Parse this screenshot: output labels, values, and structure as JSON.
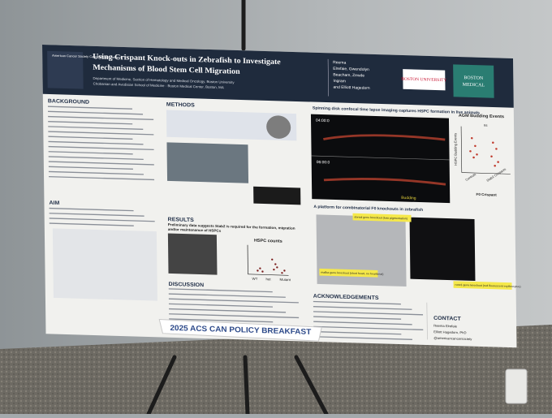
{
  "poster": {
    "header": {
      "org_logo": "American Cancer Society Cancer Action Network",
      "title": [
        "Using Crispant Knock-outs in Zebrafish to Investigate",
        "Mechanisms of Blood Stem Cell Migration"
      ],
      "affiliation": [
        "Department of Medicine, Section of Hematology and Medical Oncology, Boston University",
        "Chobanian and Avedisian School of Medicine · Boston Medical Center, Boston, MA"
      ],
      "authors": [
        "Reema",
        "Elrefaie, Gwendolyn",
        "Beacham, Zewde",
        "Ingram",
        "and Elliott Hagedorn"
      ],
      "logo_left": "BOSTON UNIVERSITY",
      "logo_right": [
        "BOSTON",
        "MEDICAL"
      ]
    },
    "sections": {
      "background": "BACKGROUND",
      "aim": "AIM",
      "methods": "METHODS",
      "results": "RESULTS",
      "discussion": "DISCUSSION",
      "acknowledgements": "ACKNOWLEDGEMENTS",
      "contact": "CONTACT"
    },
    "results": {
      "finding": [
        "Preliminary data suggests Stab2 is required for the formation, migration",
        "and/or maintenance of HSPCs"
      ],
      "chart_title": "HSPC counts",
      "chart_categories": [
        "WT",
        "het",
        "Mutant"
      ]
    },
    "imaging": {
      "caption": "Spinning disk confocal time lapse imaging captures HSPC formation in live animals",
      "timestamps": [
        "04:00:0",
        "06:00:0"
      ],
      "overlay": "Budding",
      "chart_title": "AGM Budding Events",
      "chart_ylabel": "HSPC Budding Events",
      "significance": "ns",
      "chart_categories": [
        "Controls",
        "Stab2 Crispants"
      ],
      "chart_xlabel": "F0 Crispant"
    },
    "platform": {
      "caption": "A platform for combinatorial F0 knockouts in zebrafish",
      "labels": [
        "dorsal gene knockout (loss pigmentation)",
        "mafba gene knockout (short heart, no heartbeat)",
        "runx1 gene knockout (red fluorescent erythrocytes)"
      ]
    },
    "contact": [
      "Reema Elrefaie",
      "Elliott Hagedorn, PhD",
      "@americancancersociety"
    ],
    "banner": "2025 ACS CAN POLICY BREAKFAST"
  }
}
